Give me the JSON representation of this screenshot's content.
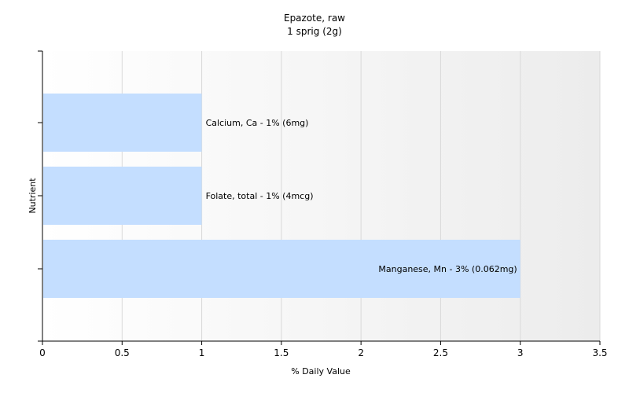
{
  "chart_data": {
    "type": "bar",
    "orientation": "horizontal",
    "title": "Epazote, raw",
    "subtitle": "1 sprig (2g)",
    "xlabel": "% Daily Value",
    "ylabel": "Nutrient",
    "xlim": [
      0,
      3.5
    ],
    "x_ticks": [
      "0",
      "0.5",
      "1",
      "1.5",
      "2",
      "2.5",
      "3",
      "3.5"
    ],
    "x_tick_values": [
      0,
      0.5,
      1,
      1.5,
      2,
      2.5,
      3,
      3.5
    ],
    "grid": true,
    "bars": [
      {
        "label": "Calcium, Ca - 1% (6mg)",
        "value": 1
      },
      {
        "label": "Folate, total - 1% (4mcg)",
        "value": 1
      },
      {
        "label": "Manganese, Mn - 3% (0.062mg)",
        "value": 3
      }
    ],
    "colors": {
      "bar": "#c4deff",
      "grid": "#d9d9d9",
      "axis": "#000000",
      "plot_bg_start": "#ffffff",
      "plot_bg_end": "#ececec"
    }
  }
}
